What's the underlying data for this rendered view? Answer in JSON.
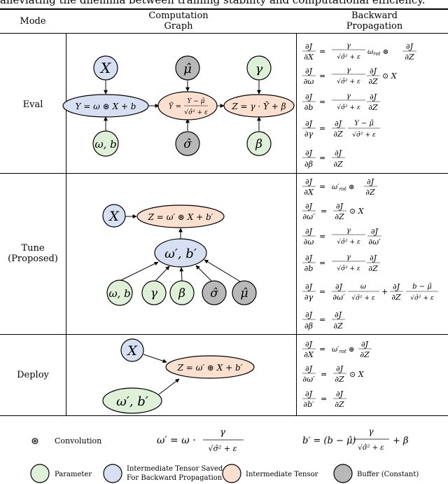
{
  "caption": "alleviating the dilemma between training stability and computational efficiency.",
  "header": {
    "mode": "Mode",
    "graph_line1": "Computation",
    "graph_line2": "Graph",
    "backward_line1": "Backward",
    "backward_line2": "Propagation"
  },
  "rows": {
    "eval": "Eval",
    "tune_line1": "Tune",
    "tune_line2": "(Proposed)",
    "deploy": "Deploy"
  },
  "eval_nodes": {
    "x": "X",
    "mu": "μ̂",
    "gamma": "γ",
    "y": "Y = ω ⊛ X + b",
    "ybar": "Ȳ = (Y − μ̂)/√(σ̂² + ε)",
    "z": "Z = γ · Ȳ + β",
    "wb": "ω, b",
    "sigma": "σ̂",
    "beta": "β"
  },
  "tune_nodes": {
    "x": "X",
    "z": "Z = ω′ ⊛ X + b′",
    "wb_prime": "ω′, b′",
    "wb": "ω, b",
    "gamma": "γ",
    "beta": "β",
    "sigma": "σ̂",
    "mu": "μ̂"
  },
  "deploy_nodes": {
    "x": "X",
    "z": "Z = ω′ ⊛ X + b′",
    "wb_prime": "ω′, b′"
  },
  "eval_eqs": [
    {
      "lhs_num": "∂J",
      "lhs_den": "∂X",
      "rhs": "γ/√(σ̂² + ε) · ω_rot ⊛ ∂J/∂Z"
    },
    {
      "lhs_num": "∂J",
      "lhs_den": "∂ω",
      "rhs": "γ/√(σ̂² + ε) · ∂J/∂Z ⊙ X"
    },
    {
      "lhs_num": "∂J",
      "lhs_den": "∂b",
      "rhs": "γ/√(σ̂² + ε) · ∂J/∂Z"
    },
    {
      "lhs_num": "∂J",
      "lhs_den": "∂γ",
      "rhs": "∂J/∂Z · (Y − μ̂)/√(σ̂² + ε)"
    },
    {
      "lhs_num": "∂J",
      "lhs_den": "∂β",
      "rhs": "∂J/∂Z"
    }
  ],
  "tune_eqs": [
    {
      "lhs_num": "∂J",
      "lhs_den": "∂X",
      "rhs": "ω′_rot ⊛ ∂J/∂Z"
    },
    {
      "lhs_num": "∂J",
      "lhs_den": "∂ω′",
      "rhs": "∂J/∂Z ⊙ X"
    },
    {
      "lhs_num": "∂J",
      "lhs_den": "∂ω",
      "rhs": "γ/√(σ̂² + ε) · ∂J/∂ω′"
    },
    {
      "lhs_num": "∂J",
      "lhs_den": "∂b",
      "rhs": "γ/√(σ̂² + ε) · ∂J/∂Z"
    },
    {
      "lhs_num": "∂J",
      "lhs_den": "∂γ",
      "rhs": "∂J/∂ω′ · ω/√(σ̂² + ε) + ∂J/∂Z · (b − μ̂)/√(σ̂² + ε)"
    },
    {
      "lhs_num": "∂J",
      "lhs_den": "∂β",
      "rhs": "∂J/∂Z"
    }
  ],
  "deploy_eqs": [
    {
      "lhs_num": "∂J",
      "lhs_den": "∂X",
      "rhs": "ω′_rot ⊛ ∂J/∂Z"
    },
    {
      "lhs_num": "∂J",
      "lhs_den": "∂ω′",
      "rhs": "∂J/∂Z ⊙ X"
    },
    {
      "lhs_num": "∂J",
      "lhs_den": "∂b′",
      "rhs": "∂J/∂Z"
    }
  ],
  "footer": {
    "conv_symbol": "⊛",
    "conv_label": "Convolution",
    "w_prime_eq": "ω′ = ω · γ/√(σ̂² + ε)",
    "b_prime_eq": "b′ = (b − μ̂) γ/√(σ̂² + ε) + β"
  },
  "legend": [
    {
      "label": "Parameter",
      "color": "#dff0d8"
    },
    {
      "label_line1": "Intermediate Tensor Saved",
      "label_line2": "For Backward Propagation",
      "color": "#d6e0f2"
    },
    {
      "label": "Intermediate Tensor",
      "color": "#fbe0cf"
    },
    {
      "label": "Buffer (Constant)",
      "color": "#b8b8b8"
    }
  ],
  "colors": {
    "parameter": "#dff0d8",
    "saved": "#d6e0f2",
    "intermediate": "#fbe0cf",
    "buffer": "#b8b8b8"
  }
}
